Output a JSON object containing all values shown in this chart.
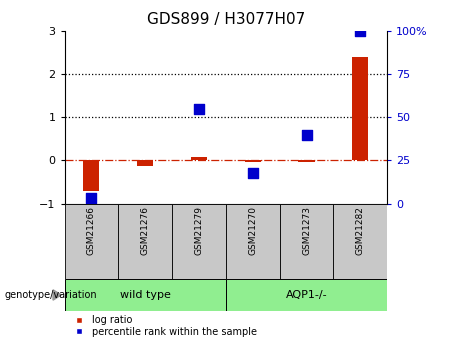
{
  "title": "GDS899 / H3077H07",
  "samples": [
    "GSM21266",
    "GSM21276",
    "GSM21279",
    "GSM21270",
    "GSM21273",
    "GSM21282"
  ],
  "log_ratio": [
    -0.72,
    -0.12,
    0.07,
    -0.04,
    -0.03,
    2.4
  ],
  "percentile_rank": [
    3,
    null,
    55,
    18,
    40,
    100
  ],
  "left_ylim": [
    -1,
    3
  ],
  "right_ylim": [
    0,
    100
  ],
  "left_yticks": [
    -1,
    0,
    1,
    2,
    3
  ],
  "right_yticks": [
    0,
    25,
    50,
    75,
    100
  ],
  "right_yticklabels": [
    "0",
    "25",
    "50",
    "75",
    "100%"
  ],
  "bar_color": "#cc2200",
  "dot_color": "#0000cc",
  "bar_width": 0.3,
  "dot_size": 50,
  "tick_fontsize": 8,
  "title_fontsize": 11,
  "genotype_label": "genotype/variation",
  "legend_log_ratio": "log ratio",
  "legend_percentile": "percentile rank within the sample",
  "group_configs": [
    {
      "indices": [
        0,
        1,
        2
      ],
      "label": "wild type",
      "color": "#90EE90"
    },
    {
      "indices": [
        3,
        4,
        5
      ],
      "label": "AQP1-/-",
      "color": "#90EE90"
    }
  ]
}
